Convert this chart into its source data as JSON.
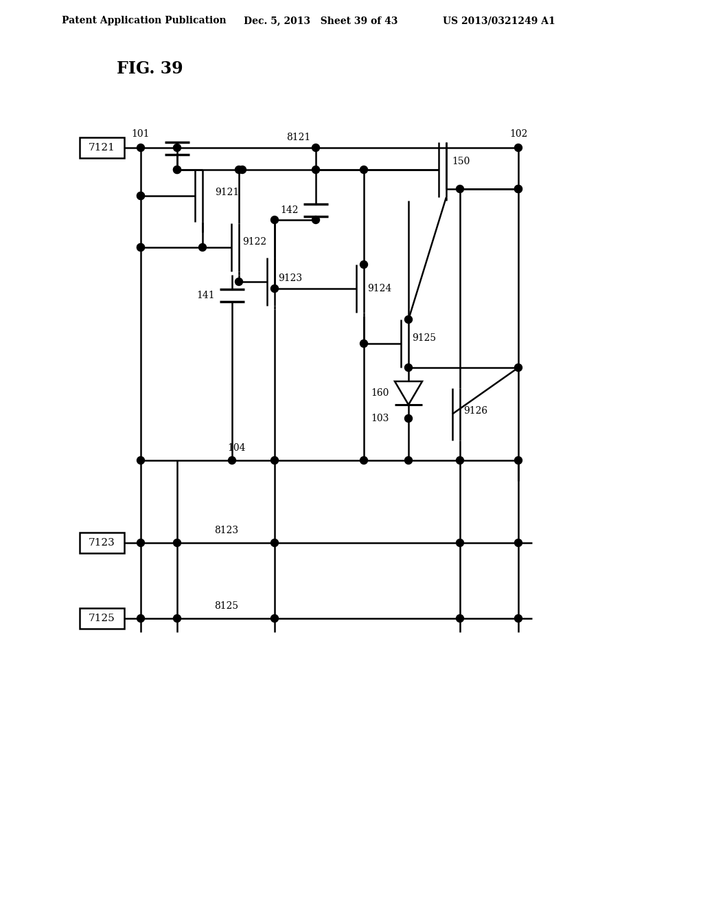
{
  "title": "FIG. 39",
  "header_left": "Patent Application Publication",
  "header_mid": "Dec. 5, 2013   Sheet 39 of 43",
  "header_right": "US 2013/0321249 A1",
  "background_color": "#ffffff",
  "line_color": "#000000"
}
